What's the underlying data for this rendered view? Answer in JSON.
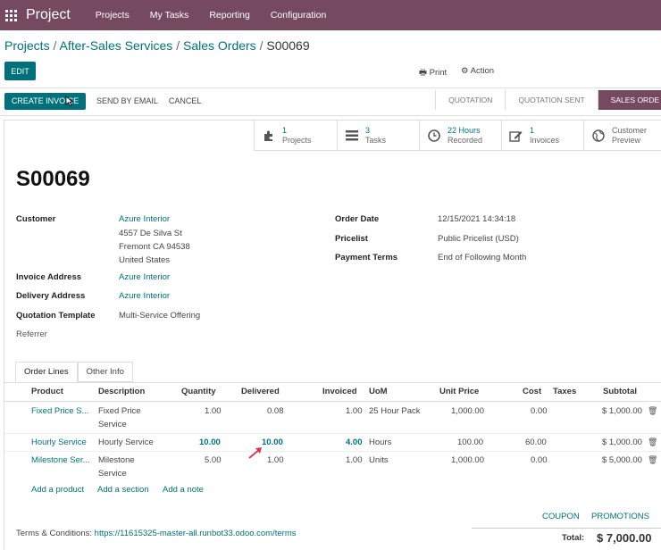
{
  "nav": {
    "brand": "Project",
    "items": [
      "Projects",
      "My Tasks",
      "Reporting",
      "Configuration"
    ]
  },
  "breadcrumb": [
    "Projects",
    "After-Sales Services",
    "Sales Orders",
    "S00069"
  ],
  "control": {
    "edit": "EDIT",
    "print": "Print",
    "action": "Action"
  },
  "statusbar": {
    "create_invoice": "CREATE INVOICE",
    "send_email": "SEND BY EMAIL",
    "cancel": "CANCEL",
    "stages": [
      "QUOTATION",
      "QUOTATION SENT",
      "SALES ORDE"
    ]
  },
  "smart_buttons": [
    {
      "icon": "puzzle-icon",
      "num": "1",
      "label": "Projects"
    },
    {
      "icon": "tasks-icon",
      "num": "3",
      "label": "Tasks"
    },
    {
      "icon": "clock-icon",
      "num": "22 Hours",
      "label": "Recorded"
    },
    {
      "icon": "pencil-square-icon",
      "num": "1",
      "label": "Invoices"
    },
    {
      "icon": "globe-icon",
      "num": "Customer",
      "label": "Preview"
    }
  ],
  "order": {
    "name": "S00069",
    "customer_label": "Customer",
    "customer": "Azure Interior",
    "address_lines": [
      "4557 De Silva St",
      "Fremont CA 94538",
      "United States"
    ],
    "invoice_address_label": "Invoice Address",
    "invoice_address": "Azure Interior",
    "delivery_address_label": "Delivery Address",
    "delivery_address": "Azure Interior",
    "template_label": "Quotation Template",
    "template": "Multi-Service Offering",
    "referrer_label": "Referrer",
    "order_date_label": "Order Date",
    "order_date": "12/15/2021 14:34:18",
    "pricelist_label": "Pricelist",
    "pricelist": "Public Pricelist (USD)",
    "payment_terms_label": "Payment Terms",
    "payment_terms": "End of Following Month"
  },
  "tabs": [
    "Order Lines",
    "Other Info"
  ],
  "table": {
    "headers": [
      "Product",
      "Description",
      "Quantity",
      "Delivered",
      "Invoiced",
      "UoM",
      "Unit Price",
      "Cost",
      "Taxes",
      "Subtotal"
    ],
    "rows": [
      {
        "product": "Fixed Price S...",
        "description": [
          "Fixed Price",
          "Service"
        ],
        "quantity": "1.00",
        "delivered": "0.08",
        "invoiced": "1.00",
        "uom": "25 Hour Pack",
        "unit_price": "1,000.00",
        "cost": "0.00",
        "taxes": "",
        "subtotal": "$ 1,000.00"
      },
      {
        "product": "Hourly Service",
        "description": [
          "Hourly Service"
        ],
        "quantity": "10.00",
        "delivered": "10.00",
        "invoiced": "4.00",
        "uom": "Hours",
        "unit_price": "100.00",
        "cost": "60.00",
        "taxes": "",
        "subtotal": "$ 1,000.00"
      },
      {
        "product": "Milestone Ser...",
        "description": [
          "Milestone",
          "Service"
        ],
        "quantity": "5.00",
        "delivered": "1.00",
        "invoiced": "1.00",
        "uom": "Units",
        "unit_price": "1,000.00",
        "cost": "0.00",
        "taxes": "",
        "subtotal": "$ 5,000.00"
      }
    ],
    "add_product": "Add a product",
    "add_section": "Add a section",
    "add_note": "Add a note"
  },
  "coupon": "COUPON",
  "promotions": "PROMOTIONS",
  "terms_label": "Terms & Conditions:",
  "terms_url": "https://11615325-master-all.runbot33.odoo.com/terms",
  "total_label": "Total:",
  "total": "$ 7,000.00",
  "colors": {
    "brand": "#75495f",
    "accent": "#00717a"
  }
}
